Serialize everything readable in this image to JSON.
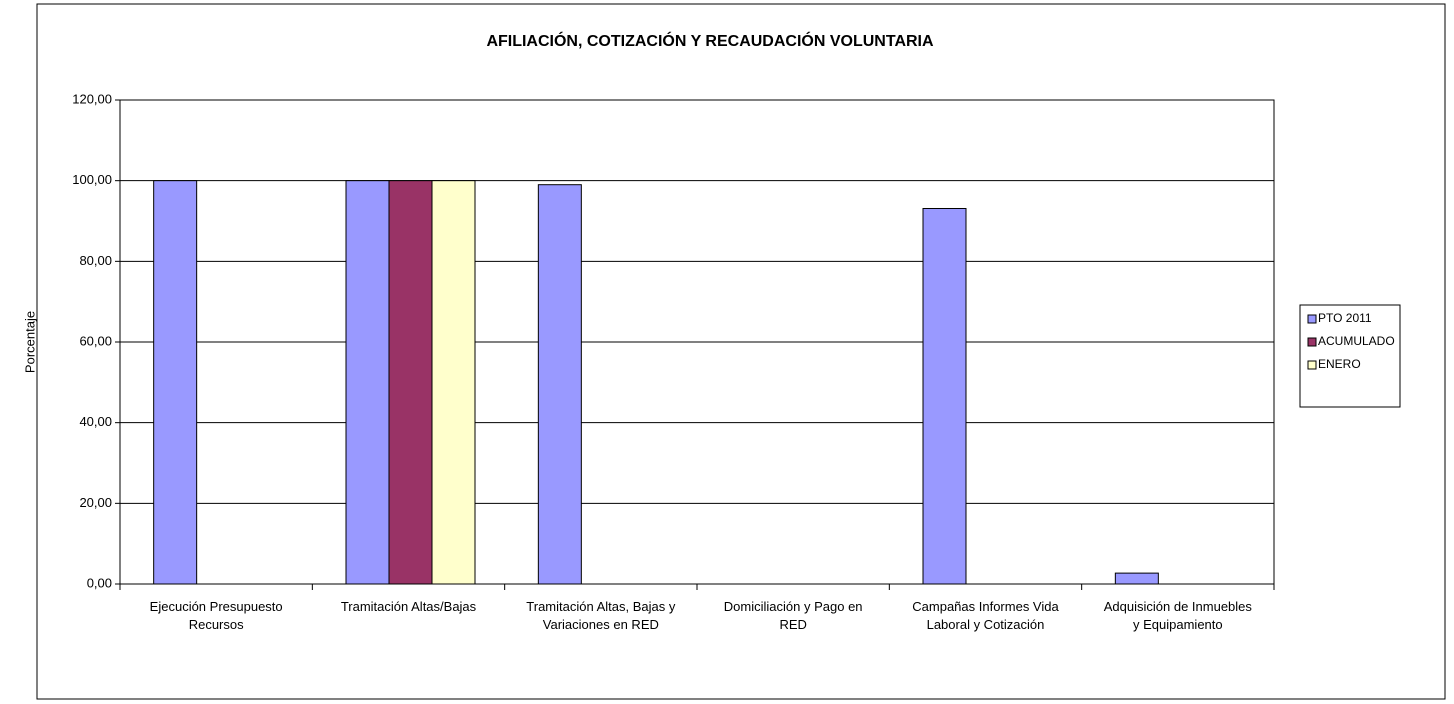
{
  "chart_data": {
    "type": "bar",
    "title": "AFILIACIÓN, COTIZACIÓN Y RECAUDACIÓN VOLUNTARIA",
    "y_label": "Porcentaje",
    "categories": [
      "Ejecución Presupuesto\nRecursos",
      "Tramitación Altas/Bajas",
      "Tramitación Altas, Bajas y\nVariaciones en RED",
      "Domiciliación y Pago en\nRED",
      "Campañas Informes Vida\nLaboral y Cotización",
      "Adquisición de Inmuebles\ny Equipamiento"
    ],
    "series": [
      {
        "name": "PTO  2011",
        "color": "#9999ff",
        "values": [
          100,
          100,
          99,
          0,
          93.1,
          2.7
        ]
      },
      {
        "name": "ACUMULADO",
        "color": "#993366",
        "values": [
          0,
          100,
          0,
          0,
          0,
          0
        ]
      },
      {
        "name": "ENERO",
        "color": "#ffffcc",
        "values": [
          0,
          100,
          0,
          0,
          0,
          0
        ]
      }
    ],
    "ylim": [
      0,
      120
    ],
    "yticks": [
      {
        "value": 0,
        "label": "0,00"
      },
      {
        "value": 20,
        "label": "20,00"
      },
      {
        "value": 40,
        "label": "40,00"
      },
      {
        "value": 60,
        "label": "60,00"
      },
      {
        "value": 80,
        "label": "80,00"
      },
      {
        "value": 100,
        "label": "100,00"
      },
      {
        "value": 120,
        "label": "120,00"
      }
    ],
    "grid": true,
    "legend": "right"
  }
}
